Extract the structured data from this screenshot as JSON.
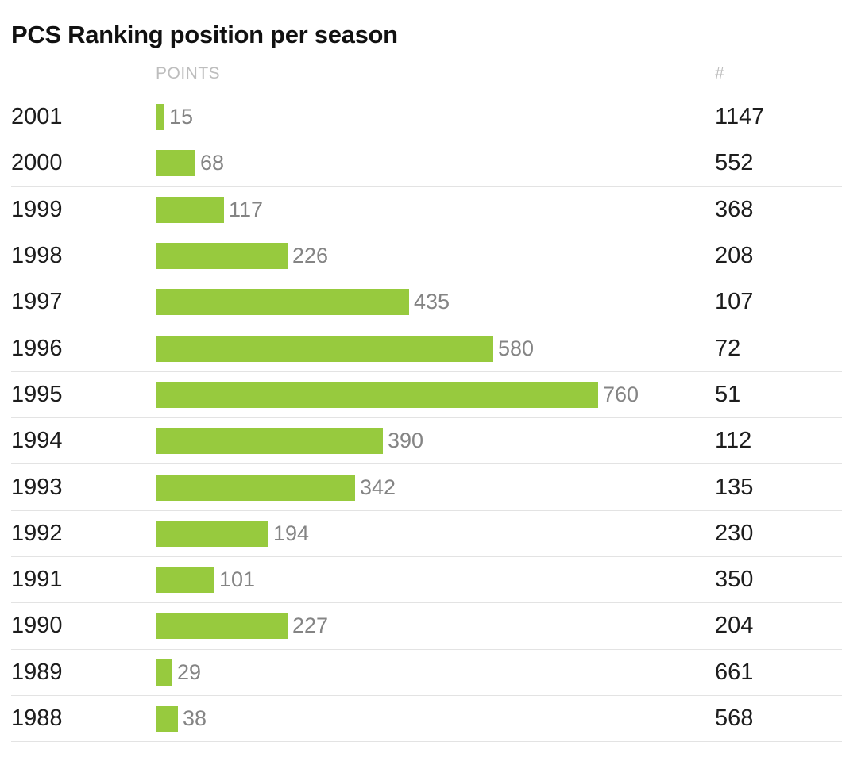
{
  "title": "PCS Ranking position per season",
  "chart_data": {
    "type": "bar",
    "orientation": "horizontal",
    "title": "PCS Ranking position per season",
    "categories": [
      "2001",
      "2000",
      "1999",
      "1998",
      "1997",
      "1996",
      "1995",
      "1994",
      "1993",
      "1992",
      "1991",
      "1990",
      "1989",
      "1988"
    ],
    "series": [
      {
        "name": "POINTS",
        "values": [
          15,
          68,
          117,
          226,
          435,
          580,
          760,
          390,
          342,
          194,
          101,
          227,
          29,
          38
        ]
      },
      {
        "name": "#",
        "values": [
          1147,
          552,
          368,
          208,
          107,
          72,
          51,
          112,
          135,
          230,
          350,
          204,
          661,
          568
        ]
      }
    ],
    "xlim": [
      0,
      760
    ],
    "bar_color": "#97ca3e",
    "value_labels": "outside-end",
    "grid": "row-separators",
    "legend": "none",
    "colors": {
      "title_text": "#111111",
      "row_text": "#1d1d1d",
      "header_text": "#bdbdbd",
      "value_label_text": "#848484",
      "separator": "#e3e3e3",
      "background": "#ffffff"
    }
  }
}
